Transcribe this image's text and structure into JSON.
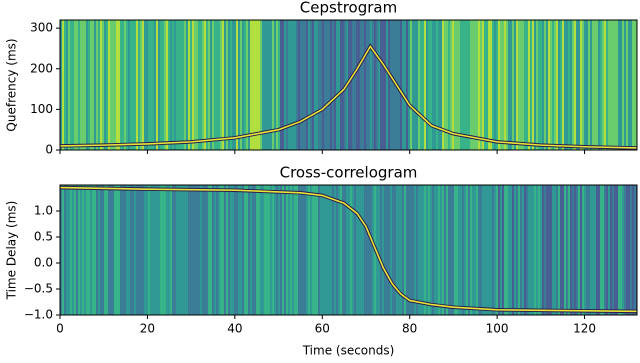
{
  "chart_data": [
    {
      "type": "heatmap",
      "title": "Cepstrogram",
      "ylabel": "Quefrency (ms)",
      "xlim": [
        0,
        132
      ],
      "ylim": [
        0,
        320
      ],
      "xticks": [
        0,
        20,
        40,
        60,
        80,
        100,
        120
      ],
      "yticks": [
        0,
        100,
        200,
        300
      ],
      "x": [
        0,
        10,
        20,
        30,
        40,
        50,
        55,
        60,
        65,
        68,
        71,
        74,
        77,
        80,
        85,
        90,
        100,
        110,
        120,
        132
      ],
      "values": [
        10,
        12,
        15,
        20,
        30,
        50,
        70,
        100,
        150,
        200,
        255,
        210,
        160,
        110,
        60,
        40,
        20,
        12,
        8,
        5
      ],
      "color": "#e6e53a"
    },
    {
      "type": "heatmap",
      "title": "Cross-correlogram",
      "xlabel": "Time (seconds)",
      "ylabel": "Time Delay (ms)",
      "xlim": [
        0,
        132
      ],
      "ylim": [
        -1,
        1.5
      ],
      "xticks": [
        0,
        20,
        40,
        60,
        80,
        100,
        120
      ],
      "yticks": [
        {
          "value": -1,
          "label": "−1.0"
        },
        {
          "value": -0.5,
          "label": "−0.5"
        },
        {
          "value": 0,
          "label": "0.0"
        },
        {
          "value": 0.5,
          "label": "0.5"
        },
        {
          "value": 1,
          "label": "1.0"
        }
      ],
      "x": [
        0,
        20,
        40,
        55,
        60,
        65,
        68,
        70,
        72,
        74,
        76,
        78,
        80,
        85,
        90,
        100,
        120,
        132
      ],
      "values": [
        1.45,
        1.42,
        1.4,
        1.35,
        1.3,
        1.15,
        0.95,
        0.7,
        0.3,
        -0.1,
        -0.4,
        -0.6,
        -0.72,
        -0.8,
        -0.85,
        -0.9,
        -0.92,
        -0.93
      ],
      "color": "#e6e53a"
    }
  ]
}
